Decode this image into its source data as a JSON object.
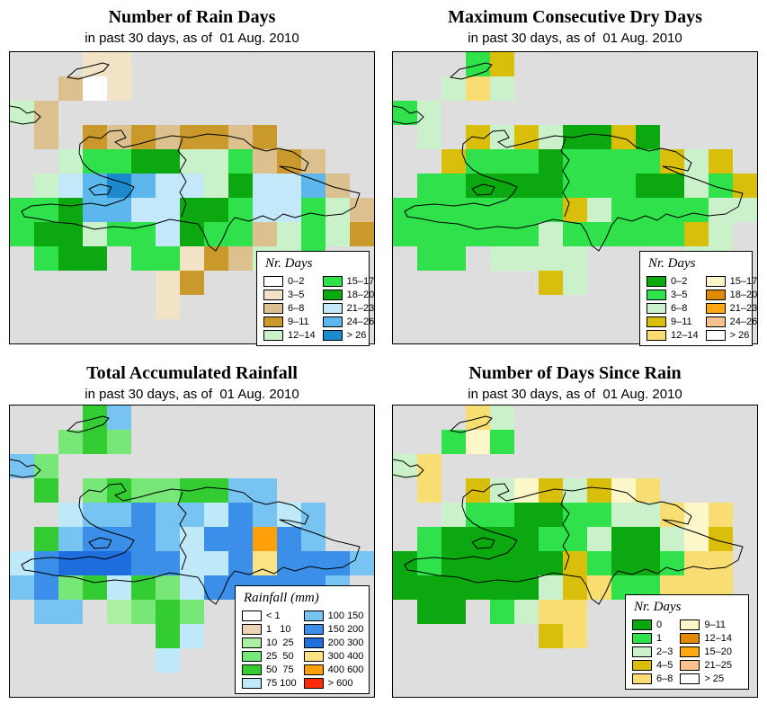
{
  "page": {
    "background": "#FFFFFF",
    "sea_color": "#DEDEDE",
    "coastline_color": "#000000"
  },
  "panels": [
    {
      "title": "Number of Rain Days",
      "subtitle": "in past 30 days, as of  01 Aug. 2010",
      "legend": {
        "title": "Nr. Days",
        "columns": [
          [
            {
              "label": "0–2",
              "color": "#FFFFFF"
            },
            {
              "label": "3–5",
              "color": "#F2E3C6"
            },
            {
              "label": "6–8",
              "color": "#DCC18E"
            },
            {
              "label": "9–11",
              "color": "#C9992B"
            },
            {
              "label": "12–14",
              "color": "#C9F2C9"
            }
          ],
          [
            {
              "label": "15–17",
              "color": "#2FE24B"
            },
            {
              "label": "18–20",
              "color": "#0CA810"
            },
            {
              "label": "21–23",
              "color": "#C2E8FA"
            },
            {
              "label": "24–26",
              "color": "#5CB8EC"
            },
            {
              "label": "> 26",
              "color": "#1C89CC"
            }
          ]
        ]
      },
      "palette": {
        "w": "#FFFFFF",
        "c": "#F2E3C6",
        "t": "#DCC18E",
        "d": "#C9992B",
        "m": "#C9F2C9",
        "g": "#2FE24B",
        "e": "#0CA810",
        "p": "#C2E8FA",
        "b": "#5CB8EC",
        "u": "#1C89CC"
      },
      "grid": [
        "...cc..........",
        "..twc..........",
        "mt.............",
        ".t.dtdtddtd....",
        "..mggeemmgtdt..",
        ".mpbubppmeppbt.",
        "ggebbppeegppgmt",
        "geemggpeggtmgmd",
        ".gee.ggcdtmmg..",
        "......cd.......",
        "......c........",
        "..............."
      ]
    },
    {
      "title": "Maximum Consecutive Dry Days",
      "subtitle": "in past 30 days, as of  01 Aug. 2010",
      "legend": {
        "title": "Nr. Days",
        "columns": [
          [
            {
              "label": "0–2",
              "color": "#0CA810"
            },
            {
              "label": "3–5",
              "color": "#2FE24B"
            },
            {
              "label": "6–8",
              "color": "#CBF1CB"
            },
            {
              "label": "9–11",
              "color": "#D9BE0A"
            },
            {
              "label": "12–14",
              "color": "#F7DD72"
            }
          ],
          [
            {
              "label": "15–17",
              "color": "#FBF7C8"
            },
            {
              "label": "18–20",
              "color": "#DF8A00"
            },
            {
              "label": "21–23",
              "color": "#FFA912"
            },
            {
              "label": "24–26",
              "color": "#F8C290"
            },
            {
              "label": "> 26",
              "color": "#FFFFFF"
            }
          ]
        ]
      },
      "palette": {
        "e": "#0CA810",
        "g": "#2FE24B",
        "m": "#CBF1CB",
        "y": "#D9BE0A",
        "l": "#F7DD72",
        "f": "#FBF7C8"
      },
      "grid": [
        "...gy..........",
        "..mlm..........",
        "gm.............",
        ".m.ymymeeye....",
        "..ygggeggggymy.",
        ".ggeeeegggeemgy",
        "gggggggymggggmm",
        "ggggggmgggggym.",
        ".gg.mmmm....mm.",
        "......ym.......",
        "...............",
        "..............."
      ]
    },
    {
      "title": "Total Accumulated Rainfall",
      "subtitle": "in past 30 days, as of  01 Aug. 2010",
      "legend": {
        "title": "Rainfall (mm)",
        "columns": [
          [
            {
              "label": "< 1",
              "color": "#FFFFFF"
            },
            {
              "label": "1   10",
              "color": "#EAD5B5"
            },
            {
              "label": "10  25",
              "color": "#ABF0A2"
            },
            {
              "label": "25  50",
              "color": "#77E877"
            },
            {
              "label": "50  75",
              "color": "#33CC33"
            },
            {
              "label": "75 100",
              "color": "#BEE9F8"
            }
          ],
          [
            {
              "label": "100 150",
              "color": "#77C4F2"
            },
            {
              "label": "150 200",
              "color": "#3B8FE8"
            },
            {
              "label": "200 300",
              "color": "#1E6EDE"
            },
            {
              "label": "300 400",
              "color": "#FBE385"
            },
            {
              "label": "400 600",
              "color": "#FFA00A"
            },
            {
              "label": "> 600",
              "color": "#FF2A0A"
            }
          ]
        ]
      },
      "palette": {
        "w": "#FFFFFF",
        "n": "#EAD5B5",
        "a": "#ABF0A2",
        "v": "#77E877",
        "G": "#33CC33",
        "y": "#BEE9F8",
        "L": "#77C4F2",
        "B": "#3B8FE8",
        "D": "#1E6EDE",
        "Y": "#FBE385",
        "o": "#FFA00A",
        "r": "#FF2A0A"
      },
      "grid": [
        "...GL..........",
        "..vGv..........",
        "Lv.............",
        ".G.vGvvGGLL....",
        "..yLLBLLyBLyL..",
        ".GLBBBLyBBoBL..",
        "yBDDDBByyBYBBBL",
        "LBvGyGvyBBBBBL.",
        ".LL.avGv..B.L..",
        "......Gy.......",
        "......y........",
        "..............."
      ]
    },
    {
      "title": "Number of Days Since Rain",
      "subtitle": "in past 30 days, as of  01 Aug. 2010",
      "legend": {
        "title": "Nr. Days",
        "columns": [
          [
            {
              "label": "0",
              "color": "#0CA810"
            },
            {
              "label": "1",
              "color": "#2FE24B"
            },
            {
              "label": "2–3",
              "color": "#CBF1CB"
            },
            {
              "label": "4–5",
              "color": "#D9BE0A"
            },
            {
              "label": "6–8",
              "color": "#F7DD72"
            }
          ],
          [
            {
              "label": "9–11",
              "color": "#FBF7C8"
            },
            {
              "label": "12–14",
              "color": "#DF8A00"
            },
            {
              "label": "15–20",
              "color": "#FFA912"
            },
            {
              "label": "21–25",
              "color": "#F8C290"
            },
            {
              "label": "> 25",
              "color": "#FFFFFF"
            }
          ]
        ]
      },
      "palette": {
        "e": "#0CA810",
        "g": "#2FE24B",
        "m": "#CBF1CB",
        "y": "#D9BE0A",
        "l": "#F7DD72",
        "f": "#FBF7C8"
      },
      "grid": [
        "...lm..........",
        "..gfg..........",
        "ml.............",
        ".l.ymfymyfl....",
        "..mggeeggmmlfl.",
        ".geeeeggmeemfy.",
        "egeeeeeygeegll.",
        "eeeeeemylgglll.",
        ".ee.gmll...l...",
        "......yl.......",
        "...............",
        "..............."
      ]
    }
  ]
}
